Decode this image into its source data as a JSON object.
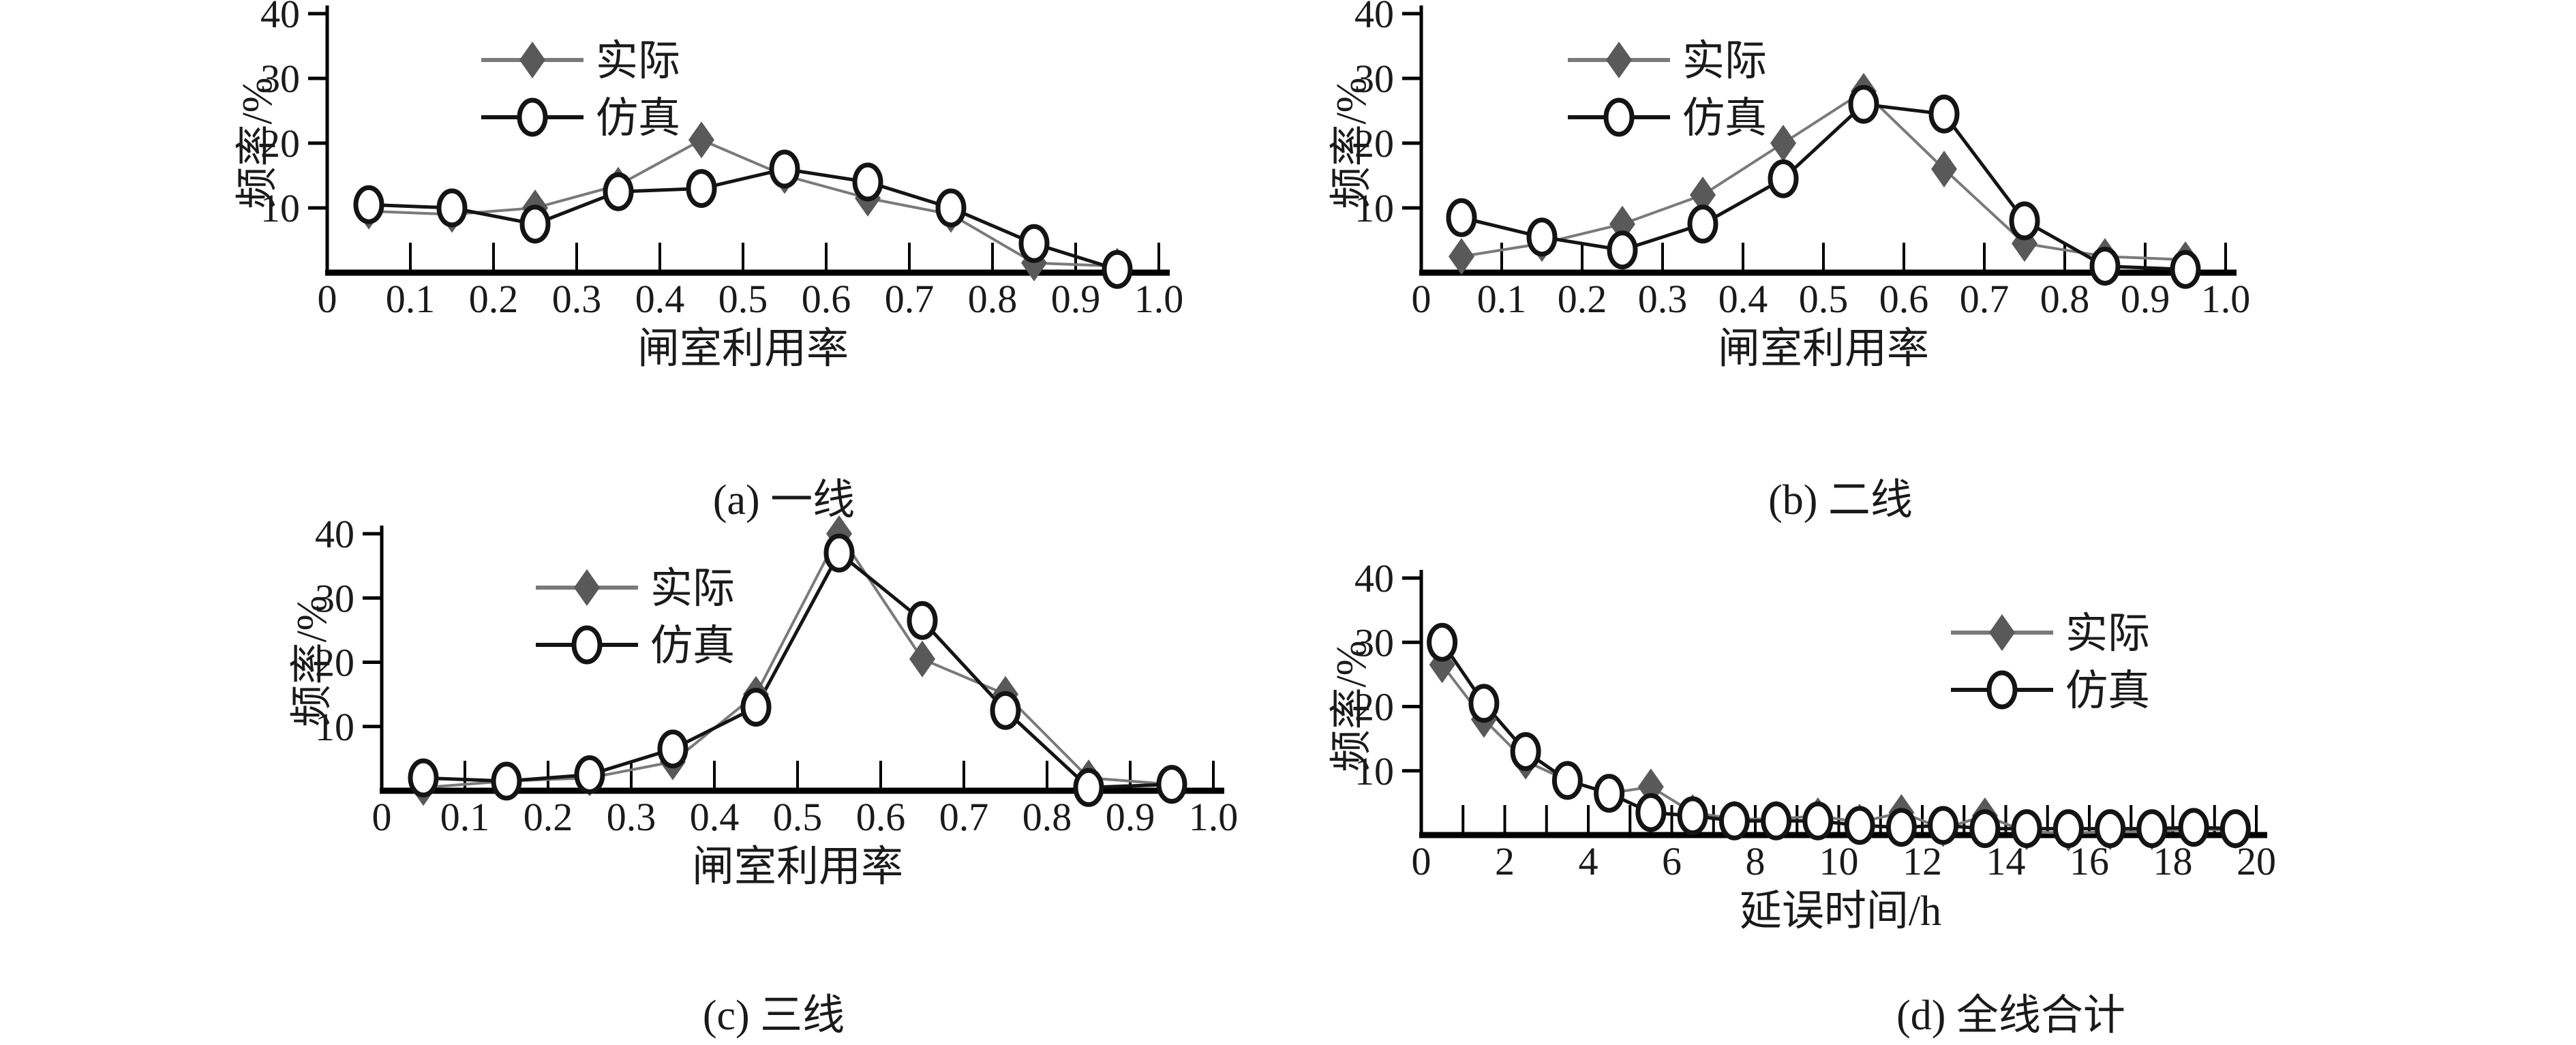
{
  "figure": {
    "background": "#ffffff",
    "text_color": "#1a1a1a",
    "legend": {
      "actual_label": "实际",
      "sim_label": "仿真"
    },
    "styles": {
      "actual_line_color": "#7a7a7a",
      "actual_marker_color": "#595959",
      "sim_line_color": "#141414",
      "sim_marker_fill": "#ffffff",
      "sim_marker_stroke": "#141414",
      "axis_color": "#000000"
    }
  },
  "chart_data": [
    {
      "id": "a",
      "type": "line",
      "caption": "(a) 一线",
      "xlabel": "闸室利用率",
      "ylabel": "频率/%",
      "xlim": [
        0,
        1.0
      ],
      "ylim": [
        0,
        40
      ],
      "yticks": [
        10,
        20,
        30,
        40
      ],
      "xticks": [
        0,
        0.1,
        0.2,
        0.3,
        0.4,
        0.5,
        0.6,
        0.7,
        0.8,
        0.9,
        1.0
      ],
      "xtick_labels": [
        "0",
        "0.1",
        "0.2",
        "0.3",
        "0.4",
        "0.5",
        "0.6",
        "0.7",
        "0.8",
        "0.9",
        "1.0"
      ],
      "grid": false,
      "legend_position": "upper-left",
      "x": [
        0.05,
        0.15,
        0.25,
        0.35,
        0.45,
        0.55,
        0.65,
        0.75,
        0.85,
        0.95
      ],
      "series": [
        {
          "name": "实际",
          "marker": "diamond",
          "values": [
            9.5,
            9,
            10,
            13.5,
            20.5,
            15,
            11.5,
            9,
            1.5,
            1
          ]
        },
        {
          "name": "仿真",
          "marker": "circle",
          "values": [
            10.5,
            10,
            7.5,
            12.5,
            13,
            16,
            14,
            10,
            4.5,
            0.5
          ]
        }
      ]
    },
    {
      "id": "b",
      "type": "line",
      "caption": "(b) 二线",
      "xlabel": "闸室利用率",
      "ylabel": "频率/%",
      "xlim": [
        0,
        1.0
      ],
      "ylim": [
        0,
        40
      ],
      "yticks": [
        10,
        20,
        30,
        40
      ],
      "xticks": [
        0,
        0.1,
        0.2,
        0.3,
        0.4,
        0.5,
        0.6,
        0.7,
        0.8,
        0.9,
        1.0
      ],
      "xtick_labels": [
        "0",
        "0.1",
        "0.2",
        "0.3",
        "0.4",
        "0.5",
        "0.6",
        "0.7",
        "0.8",
        "0.9",
        "1.0"
      ],
      "grid": false,
      "legend_position": "upper-left",
      "x": [
        0.05,
        0.15,
        0.25,
        0.35,
        0.45,
        0.55,
        0.65,
        0.75,
        0.85,
        0.95
      ],
      "series": [
        {
          "name": "实际",
          "marker": "diamond",
          "values": [
            2.5,
            4.5,
            7.5,
            12,
            20,
            28,
            16,
            4.5,
            2.5,
            2
          ]
        },
        {
          "name": "仿真",
          "marker": "circle",
          "values": [
            8.5,
            5.5,
            3.5,
            7.5,
            14.5,
            26,
            24.5,
            8,
            1,
            0.5
          ]
        }
      ]
    },
    {
      "id": "c",
      "type": "line",
      "caption": "(c) 三线",
      "xlabel": "闸室利用率",
      "ylabel": "频率/%",
      "xlim": [
        0,
        1.0
      ],
      "ylim": [
        0,
        40
      ],
      "yticks": [
        10,
        20,
        30,
        40
      ],
      "xticks": [
        0,
        0.1,
        0.2,
        0.3,
        0.4,
        0.5,
        0.6,
        0.7,
        0.8,
        0.9,
        1.0
      ],
      "xtick_labels": [
        "0",
        "0.1",
        "0.2",
        "0.3",
        "0.4",
        "0.5",
        "0.6",
        "0.7",
        "0.8",
        "0.9",
        "1.0"
      ],
      "grid": false,
      "legend_position": "upper-left",
      "x": [
        0.05,
        0.15,
        0.25,
        0.35,
        0.45,
        0.55,
        0.65,
        0.75,
        0.85,
        0.95
      ],
      "series": [
        {
          "name": "实际",
          "marker": "diamond",
          "values": [
            0.5,
            1.5,
            2,
            4.5,
            15,
            40,
            20.5,
            15,
            2,
            1
          ]
        },
        {
          "name": "仿真",
          "marker": "circle",
          "values": [
            2,
            1.5,
            2.5,
            6.5,
            13,
            37,
            26.5,
            12.5,
            0.5,
            1
          ]
        }
      ]
    },
    {
      "id": "d",
      "type": "line",
      "caption": "(d) 全线合计",
      "xlabel": "延误时间/h",
      "ylabel": "频率/%",
      "xlim": [
        0,
        20
      ],
      "ylim": [
        0,
        40
      ],
      "yticks": [
        10,
        20,
        30,
        40
      ],
      "xticks": [
        0,
        2,
        4,
        6,
        8,
        10,
        12,
        14,
        16,
        18,
        20
      ],
      "xtick_labels": [
        "0",
        "2",
        "4",
        "6",
        "8",
        "10",
        "12",
        "14",
        "16",
        "18",
        "20"
      ],
      "minor_xtick_step": 1,
      "grid": false,
      "legend_position": "upper-right",
      "x": [
        0.5,
        1.5,
        2.5,
        3.5,
        4.5,
        5.5,
        6.5,
        7.5,
        8.5,
        9.5,
        10.5,
        11.5,
        12.5,
        13.5,
        14.5,
        15.5,
        16.5,
        17.5,
        18.5,
        19.5
      ],
      "series": [
        {
          "name": "实际",
          "marker": "diamond",
          "values": [
            26.5,
            18,
            11.5,
            8.5,
            6.5,
            7.5,
            3.5,
            2.5,
            2.5,
            3,
            2,
            3.5,
            1,
            3,
            0.5,
            0.3,
            0.5,
            0.5,
            1,
            0.7
          ]
        },
        {
          "name": "仿真",
          "marker": "circle",
          "values": [
            30,
            20.5,
            13,
            8.5,
            6.5,
            3.5,
            3,
            2.2,
            2.2,
            2.2,
            1.5,
            1.2,
            1.5,
            1,
            1,
            1,
            1,
            1,
            1.2,
            1
          ]
        }
      ]
    }
  ]
}
